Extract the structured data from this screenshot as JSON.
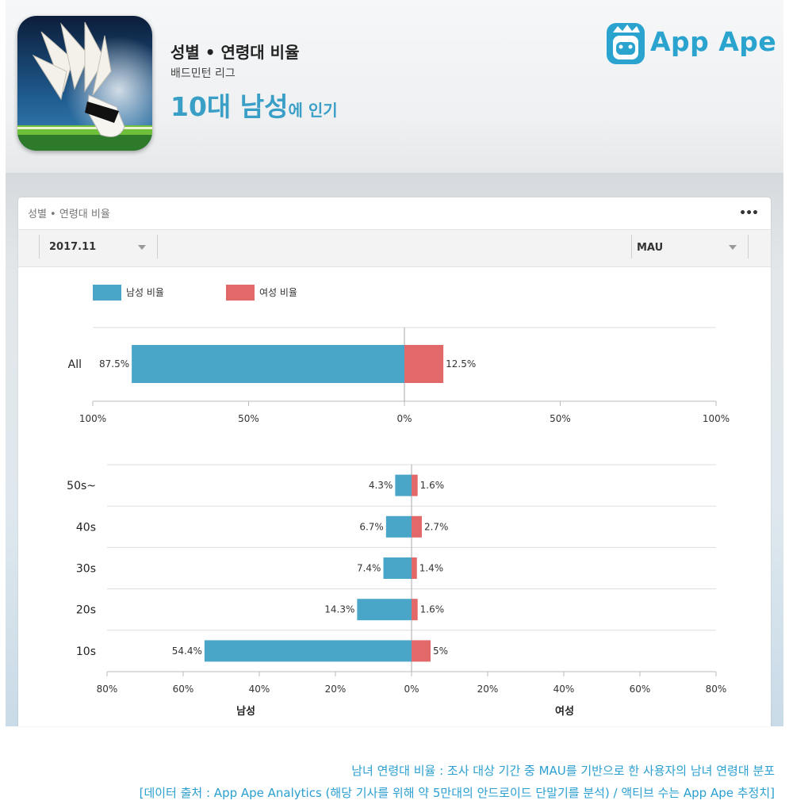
{
  "header": {
    "title": "성별 • 연령대 비율",
    "app_name": "배드민턴 리그",
    "headline_big": "10대 남성",
    "headline_small": "에 인기",
    "brand": "App Ape"
  },
  "card": {
    "title": "성별 • 연령대 비율",
    "more_label": "•••",
    "month_filter": "2017.11",
    "metric_filter": "MAU"
  },
  "colors": {
    "male": "#4aa6c9",
    "female": "#e26869",
    "accent": "#2a9fd0"
  },
  "caption": {
    "line1": "남녀 연령대 비율 : 조사 대상 기간 중 MAU를 기반으로 한 사용자의 남녀 연령대 분포",
    "line2": "[데이터 출처 : App Ape Analytics (해당 기사를 위해 약 5만대의 안드로이드 단말기를 분석) / 액티브 수는 App Ape 추정치]"
  },
  "chart_data": {
    "type": "bar",
    "orientation": "horizontal-diverging",
    "legend": [
      "남성 비율",
      "여성 비율"
    ],
    "legend_placement": "top-left",
    "overall": {
      "categories": [
        "All"
      ],
      "male": [
        87.5
      ],
      "female": [
        12.5
      ],
      "male_labels": [
        "87.5%"
      ],
      "female_labels": [
        "12.5%"
      ],
      "xlim": [
        -100,
        100
      ],
      "ticks": [
        "100%",
        "50%",
        "0%",
        "50%",
        "100%"
      ]
    },
    "by_age": {
      "categories": [
        "50s~",
        "40s",
        "30s",
        "20s",
        "10s"
      ],
      "male": [
        4.3,
        6.7,
        7.4,
        14.3,
        54.4
      ],
      "female": [
        1.6,
        2.7,
        1.4,
        1.6,
        5
      ],
      "male_labels": [
        "4.3%",
        "6.7%",
        "7.4%",
        "14.3%",
        "54.4%"
      ],
      "female_labels": [
        "1.6%",
        "2.7%",
        "1.4%",
        "1.6%",
        "5%"
      ],
      "xlim": [
        -80,
        80
      ],
      "ticks": [
        "80%",
        "60%",
        "40%",
        "20%",
        "0%",
        "20%",
        "40%",
        "60%",
        "80%"
      ],
      "xlabel_left": "남성",
      "xlabel_right": "여성"
    }
  }
}
